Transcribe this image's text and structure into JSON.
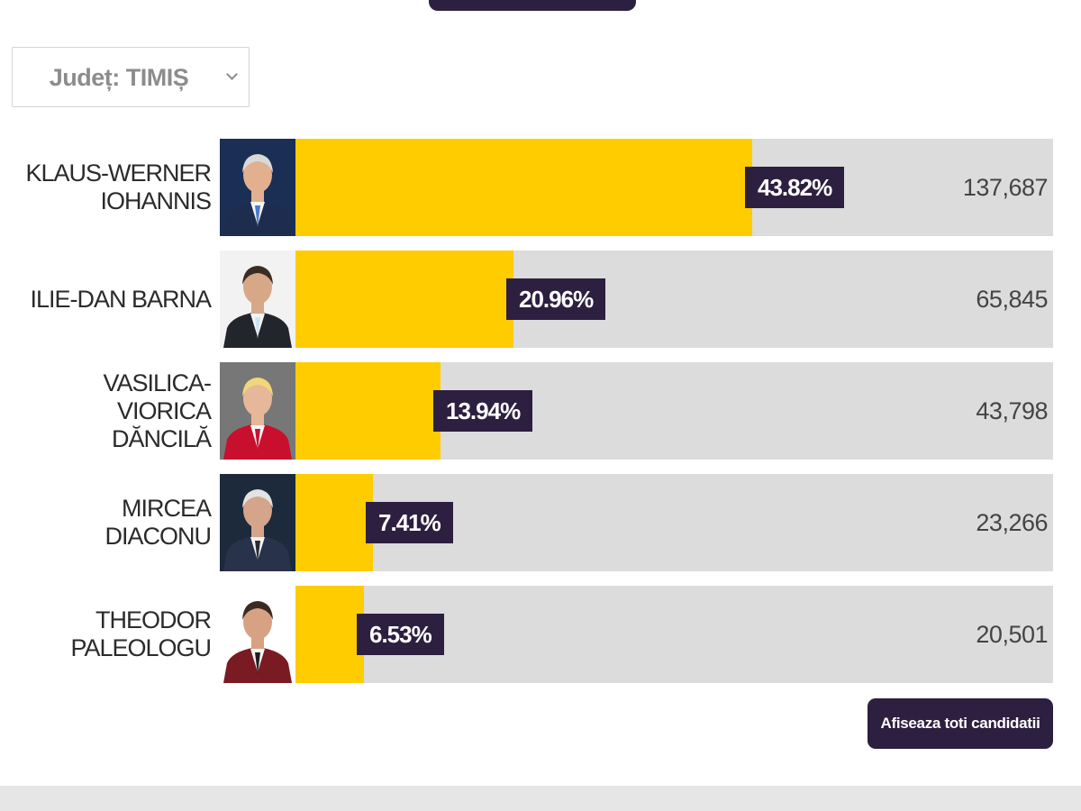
{
  "filter": {
    "county_label": "Județ: TIMIȘ"
  },
  "chart_data": {
    "type": "bar",
    "orientation": "horizontal",
    "categories": [
      "KLAUS-WERNER IOHANNIS",
      "ILIE-DAN BARNA",
      "VASILICA-VIORICA DĂNCILĂ",
      "MIRCEA DIACONU",
      "THEODOR PALEOLOGU"
    ],
    "display_names": [
      "KLAUS-WERNER\nIOHANNIS",
      "ILIE-DAN BARNA",
      "VASILICA-VIORICA\nDĂNCILĂ",
      "MIRCEA DIACONU",
      "THEODOR\nPALEOLOGU"
    ],
    "values": [
      43.82,
      20.96,
      13.94,
      7.41,
      6.53
    ],
    "value_labels": [
      "43.82%",
      "20.96%",
      "13.94%",
      "7.41%",
      "6.53%"
    ],
    "votes": [
      "137,687",
      "65,845",
      "43,798",
      "23,266",
      "20,501"
    ],
    "xlim": [
      0,
      72.7
    ],
    "grid": false,
    "colors": {
      "bar": "#ffcc00",
      "track": "#dcdcdc",
      "label_bg": "#2d1f3f"
    }
  },
  "portraits": [
    {
      "icon": "candidate-photo-iohannis",
      "bg": "#1b2f55",
      "suit": "#1e2d4d",
      "tie": "#4a7cc9",
      "hair": "#d9d9d9",
      "skin": "#e2b08f"
    },
    {
      "icon": "candidate-photo-barna",
      "bg": "#f2f2f2",
      "suit": "#22252b",
      "tie": "#cfe2f2",
      "hair": "#3a2c25",
      "skin": "#d7a888"
    },
    {
      "icon": "candidate-photo-dancila",
      "bg": "#777777",
      "suit": "#c8102e",
      "tie": "#c8102e",
      "hair": "#f0d878",
      "skin": "#e6b899"
    },
    {
      "icon": "candidate-photo-diaconu",
      "bg": "#1c2a3c",
      "suit": "#28324a",
      "tie": "#2a2a33",
      "hair": "#e3e3e3",
      "skin": "#d4a58a"
    },
    {
      "icon": "candidate-photo-paleologu",
      "bg": "#ffffff",
      "suit": "#7a1a22",
      "tie": "#1d1d1d",
      "hair": "#3a2a22",
      "skin": "#d6a283"
    }
  ],
  "actions": {
    "show_all_label": "Afiseaza toti candidatii"
  }
}
